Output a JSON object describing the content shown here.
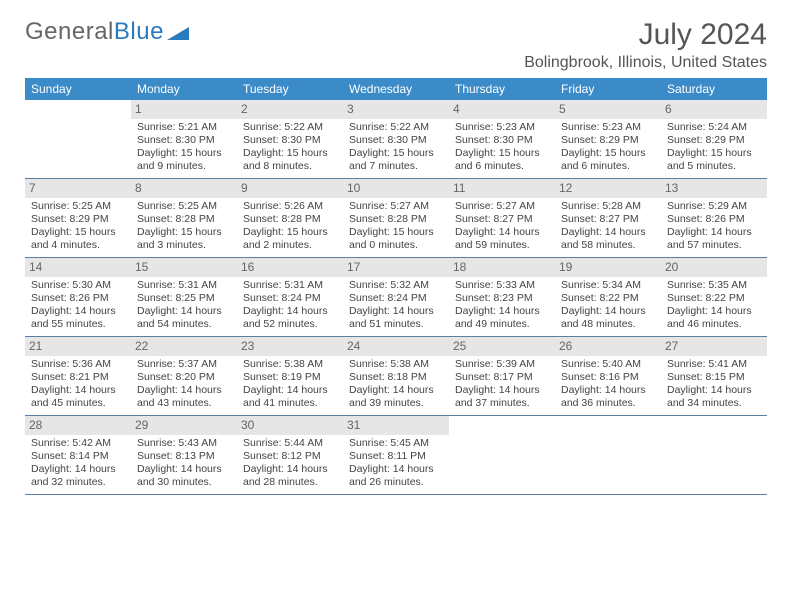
{
  "brand": {
    "part1": "General",
    "part2": "Blue"
  },
  "title": {
    "month": "July 2024",
    "location": "Bolingbrook, Illinois, United States"
  },
  "colors": {
    "header_bg": "#3b8bc9",
    "header_text": "#ffffff",
    "daynum_bg": "#e6e6e6",
    "week_border": "#5a7fa0",
    "text": "#444444",
    "title_text": "#555555"
  },
  "day_labels": [
    "Sunday",
    "Monday",
    "Tuesday",
    "Wednesday",
    "Thursday",
    "Friday",
    "Saturday"
  ],
  "weeks": [
    [
      {
        "empty": true
      },
      {
        "day": "1",
        "sunrise": "Sunrise: 5:21 AM",
        "sunset": "Sunset: 8:30 PM",
        "d1": "Daylight: 15 hours",
        "d2": "and 9 minutes."
      },
      {
        "day": "2",
        "sunrise": "Sunrise: 5:22 AM",
        "sunset": "Sunset: 8:30 PM",
        "d1": "Daylight: 15 hours",
        "d2": "and 8 minutes."
      },
      {
        "day": "3",
        "sunrise": "Sunrise: 5:22 AM",
        "sunset": "Sunset: 8:30 PM",
        "d1": "Daylight: 15 hours",
        "d2": "and 7 minutes."
      },
      {
        "day": "4",
        "sunrise": "Sunrise: 5:23 AM",
        "sunset": "Sunset: 8:30 PM",
        "d1": "Daylight: 15 hours",
        "d2": "and 6 minutes."
      },
      {
        "day": "5",
        "sunrise": "Sunrise: 5:23 AM",
        "sunset": "Sunset: 8:29 PM",
        "d1": "Daylight: 15 hours",
        "d2": "and 6 minutes."
      },
      {
        "day": "6",
        "sunrise": "Sunrise: 5:24 AM",
        "sunset": "Sunset: 8:29 PM",
        "d1": "Daylight: 15 hours",
        "d2": "and 5 minutes."
      }
    ],
    [
      {
        "day": "7",
        "sunrise": "Sunrise: 5:25 AM",
        "sunset": "Sunset: 8:29 PM",
        "d1": "Daylight: 15 hours",
        "d2": "and 4 minutes."
      },
      {
        "day": "8",
        "sunrise": "Sunrise: 5:25 AM",
        "sunset": "Sunset: 8:28 PM",
        "d1": "Daylight: 15 hours",
        "d2": "and 3 minutes."
      },
      {
        "day": "9",
        "sunrise": "Sunrise: 5:26 AM",
        "sunset": "Sunset: 8:28 PM",
        "d1": "Daylight: 15 hours",
        "d2": "and 2 minutes."
      },
      {
        "day": "10",
        "sunrise": "Sunrise: 5:27 AM",
        "sunset": "Sunset: 8:28 PM",
        "d1": "Daylight: 15 hours",
        "d2": "and 0 minutes."
      },
      {
        "day": "11",
        "sunrise": "Sunrise: 5:27 AM",
        "sunset": "Sunset: 8:27 PM",
        "d1": "Daylight: 14 hours",
        "d2": "and 59 minutes."
      },
      {
        "day": "12",
        "sunrise": "Sunrise: 5:28 AM",
        "sunset": "Sunset: 8:27 PM",
        "d1": "Daylight: 14 hours",
        "d2": "and 58 minutes."
      },
      {
        "day": "13",
        "sunrise": "Sunrise: 5:29 AM",
        "sunset": "Sunset: 8:26 PM",
        "d1": "Daylight: 14 hours",
        "d2": "and 57 minutes."
      }
    ],
    [
      {
        "day": "14",
        "sunrise": "Sunrise: 5:30 AM",
        "sunset": "Sunset: 8:26 PM",
        "d1": "Daylight: 14 hours",
        "d2": "and 55 minutes."
      },
      {
        "day": "15",
        "sunrise": "Sunrise: 5:31 AM",
        "sunset": "Sunset: 8:25 PM",
        "d1": "Daylight: 14 hours",
        "d2": "and 54 minutes."
      },
      {
        "day": "16",
        "sunrise": "Sunrise: 5:31 AM",
        "sunset": "Sunset: 8:24 PM",
        "d1": "Daylight: 14 hours",
        "d2": "and 52 minutes."
      },
      {
        "day": "17",
        "sunrise": "Sunrise: 5:32 AM",
        "sunset": "Sunset: 8:24 PM",
        "d1": "Daylight: 14 hours",
        "d2": "and 51 minutes."
      },
      {
        "day": "18",
        "sunrise": "Sunrise: 5:33 AM",
        "sunset": "Sunset: 8:23 PM",
        "d1": "Daylight: 14 hours",
        "d2": "and 49 minutes."
      },
      {
        "day": "19",
        "sunrise": "Sunrise: 5:34 AM",
        "sunset": "Sunset: 8:22 PM",
        "d1": "Daylight: 14 hours",
        "d2": "and 48 minutes."
      },
      {
        "day": "20",
        "sunrise": "Sunrise: 5:35 AM",
        "sunset": "Sunset: 8:22 PM",
        "d1": "Daylight: 14 hours",
        "d2": "and 46 minutes."
      }
    ],
    [
      {
        "day": "21",
        "sunrise": "Sunrise: 5:36 AM",
        "sunset": "Sunset: 8:21 PM",
        "d1": "Daylight: 14 hours",
        "d2": "and 45 minutes."
      },
      {
        "day": "22",
        "sunrise": "Sunrise: 5:37 AM",
        "sunset": "Sunset: 8:20 PM",
        "d1": "Daylight: 14 hours",
        "d2": "and 43 minutes."
      },
      {
        "day": "23",
        "sunrise": "Sunrise: 5:38 AM",
        "sunset": "Sunset: 8:19 PM",
        "d1": "Daylight: 14 hours",
        "d2": "and 41 minutes."
      },
      {
        "day": "24",
        "sunrise": "Sunrise: 5:38 AM",
        "sunset": "Sunset: 8:18 PM",
        "d1": "Daylight: 14 hours",
        "d2": "and 39 minutes."
      },
      {
        "day": "25",
        "sunrise": "Sunrise: 5:39 AM",
        "sunset": "Sunset: 8:17 PM",
        "d1": "Daylight: 14 hours",
        "d2": "and 37 minutes."
      },
      {
        "day": "26",
        "sunrise": "Sunrise: 5:40 AM",
        "sunset": "Sunset: 8:16 PM",
        "d1": "Daylight: 14 hours",
        "d2": "and 36 minutes."
      },
      {
        "day": "27",
        "sunrise": "Sunrise: 5:41 AM",
        "sunset": "Sunset: 8:15 PM",
        "d1": "Daylight: 14 hours",
        "d2": "and 34 minutes."
      }
    ],
    [
      {
        "day": "28",
        "sunrise": "Sunrise: 5:42 AM",
        "sunset": "Sunset: 8:14 PM",
        "d1": "Daylight: 14 hours",
        "d2": "and 32 minutes."
      },
      {
        "day": "29",
        "sunrise": "Sunrise: 5:43 AM",
        "sunset": "Sunset: 8:13 PM",
        "d1": "Daylight: 14 hours",
        "d2": "and 30 minutes."
      },
      {
        "day": "30",
        "sunrise": "Sunrise: 5:44 AM",
        "sunset": "Sunset: 8:12 PM",
        "d1": "Daylight: 14 hours",
        "d2": "and 28 minutes."
      },
      {
        "day": "31",
        "sunrise": "Sunrise: 5:45 AM",
        "sunset": "Sunset: 8:11 PM",
        "d1": "Daylight: 14 hours",
        "d2": "and 26 minutes."
      },
      {
        "empty": true
      },
      {
        "empty": true
      },
      {
        "empty": true
      }
    ]
  ]
}
